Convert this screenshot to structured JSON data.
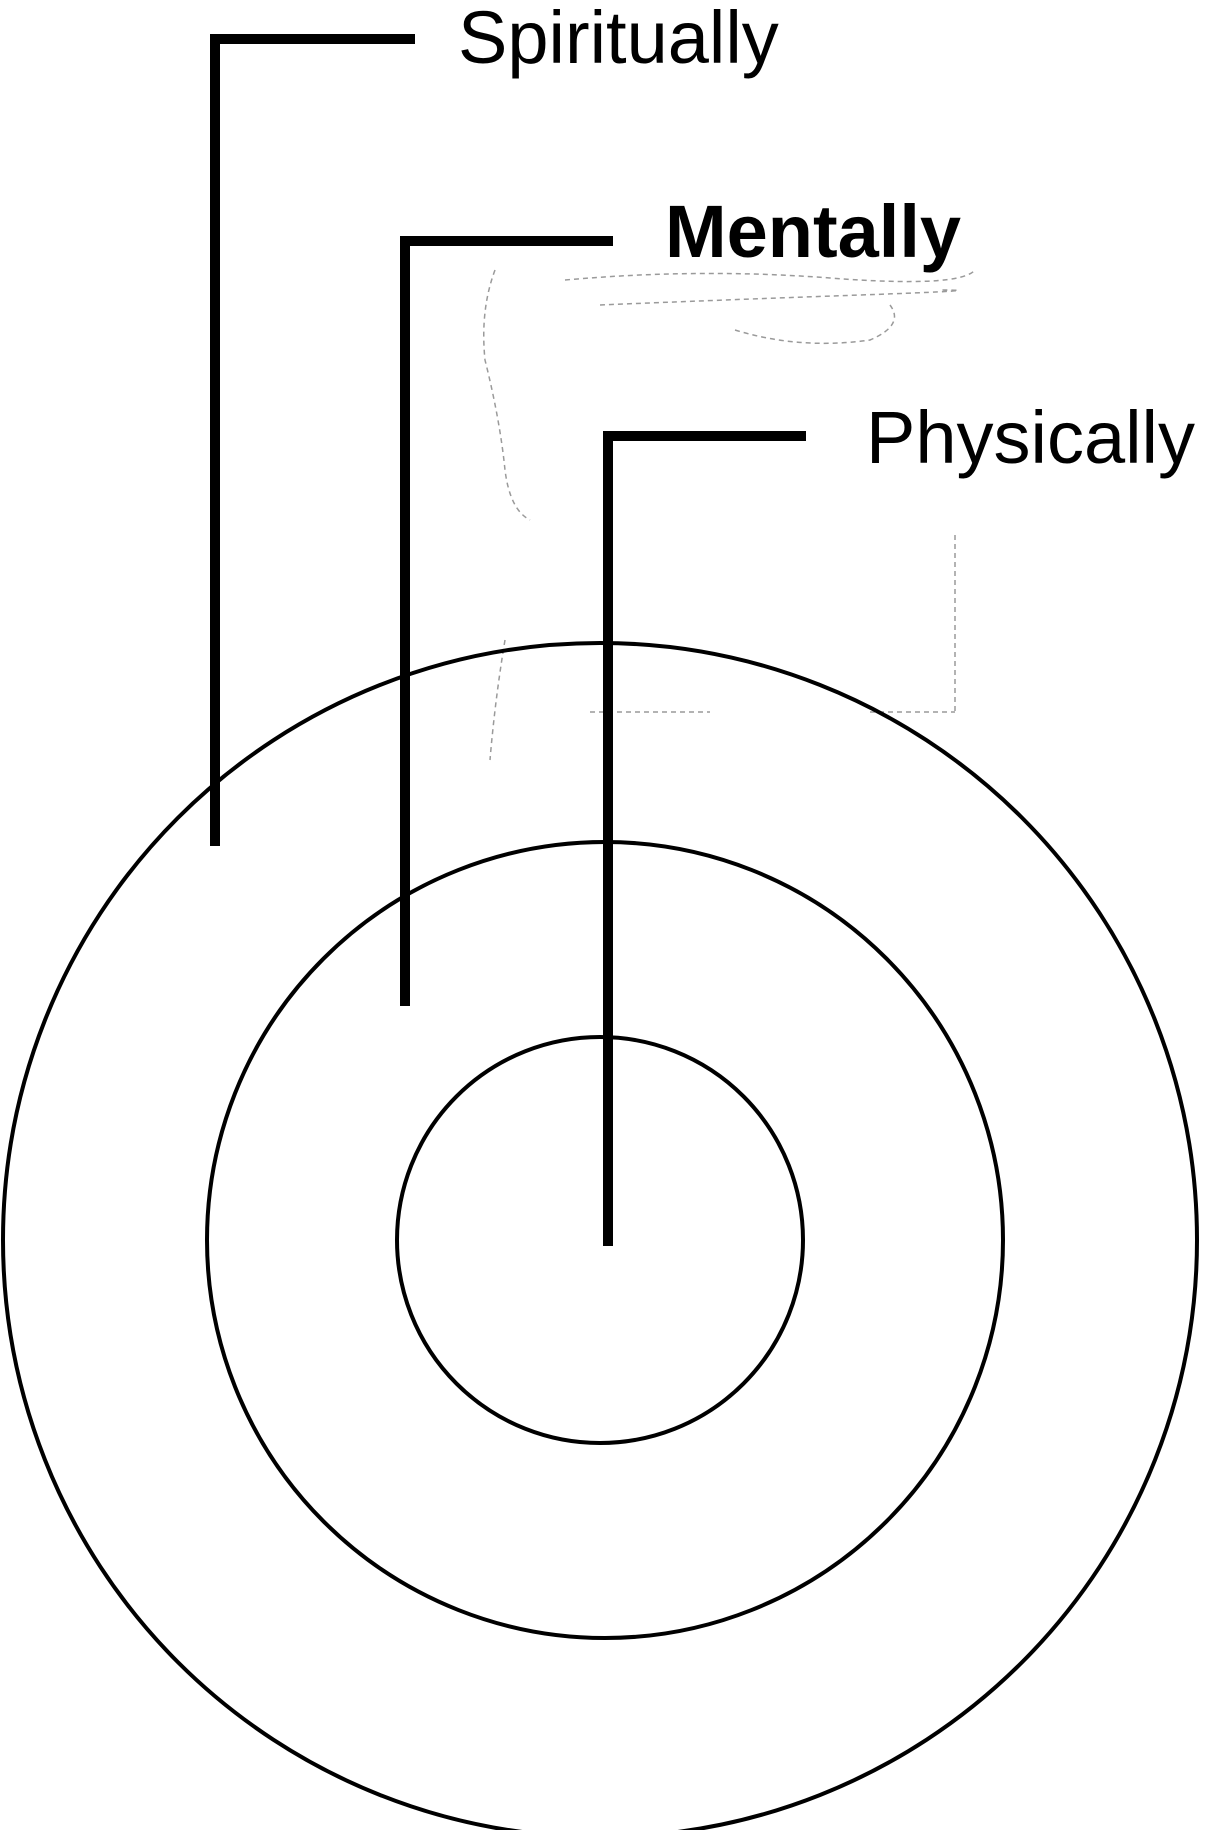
{
  "diagram": {
    "labels": {
      "spiritually": "Spiritually",
      "mentally": "Mentally",
      "physically": "Physically"
    },
    "colors": {
      "stroke": "#000000",
      "background": "#ffffff"
    }
  }
}
